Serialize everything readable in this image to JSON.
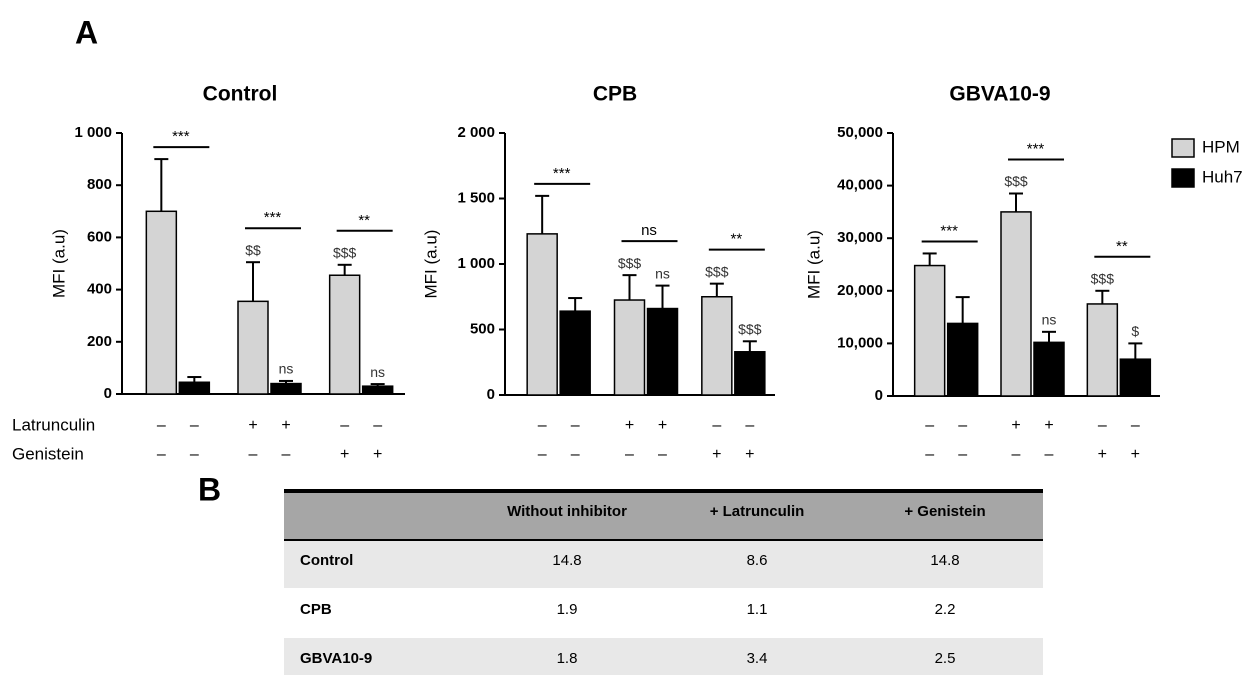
{
  "panel_labels": [
    "A",
    "B"
  ],
  "conditions": [
    "Latrunculin",
    "Genistein"
  ],
  "legend": {
    "position": "right"
  },
  "chart_data": [
    {
      "type": "bar",
      "title": "Control",
      "ylabel": "MFI (a.u)",
      "categories": [
        null,
        null,
        null
      ],
      "series": [
        {
          "name": "HPM",
          "color": "#d4d4d4",
          "values": [
            700,
            355,
            455
          ],
          "errors": [
            200,
            150,
            40
          ],
          "bar_labels": [
            null,
            "$$",
            "$$$"
          ]
        },
        {
          "name": "Huh7",
          "color": "#000000",
          "values": [
            45,
            40,
            30
          ],
          "errors": [
            20,
            10,
            8
          ],
          "bar_labels": [
            null,
            "ns",
            "ns"
          ]
        }
      ],
      "pair_labels": [
        "***",
        "***",
        "**"
      ],
      "condition_marks": [
        [
          "–",
          "–",
          "+",
          "+",
          "–",
          "–"
        ],
        [
          "–",
          "–",
          "–",
          "–",
          "+",
          "+"
        ]
      ],
      "ylim": [
        0,
        1000
      ],
      "yticks": [
        0,
        200,
        400,
        600,
        800,
        {
          "value": 1000,
          "label": "1 000"
        }
      ]
    },
    {
      "type": "bar",
      "title": "CPB",
      "ylabel": "MFI (a.u)",
      "categories": [
        null,
        null,
        null
      ],
      "series": [
        {
          "name": "HPM",
          "color": "#d4d4d4",
          "values": [
            1230,
            725,
            750
          ],
          "errors": [
            290,
            190,
            100
          ],
          "bar_labels": [
            null,
            "$$$",
            "$$$"
          ]
        },
        {
          "name": "Huh7",
          "color": "#000000",
          "values": [
            640,
            660,
            330
          ],
          "errors": [
            100,
            175,
            80
          ],
          "bar_labels": [
            null,
            "ns",
            "$$$"
          ]
        }
      ],
      "pair_labels": [
        "***",
        "ns",
        "**"
      ],
      "condition_marks": [
        [
          "–",
          "–",
          "+",
          "+",
          "–",
          "–"
        ],
        [
          "–",
          "–",
          "–",
          "–",
          "+",
          "+"
        ]
      ],
      "ylim": [
        0,
        2000
      ],
      "yticks": [
        0,
        500,
        {
          "value": 1000,
          "label": "1 000"
        },
        {
          "value": 1500,
          "label": "1 500"
        },
        {
          "value": 2000,
          "label": "2 000"
        }
      ]
    },
    {
      "type": "bar",
      "title": "GBVA10-9",
      "ylabel": "MFI (a.u)",
      "categories": [
        null,
        null,
        null
      ],
      "series": [
        {
          "name": "HPM",
          "color": "#d4d4d4",
          "values": [
            24800,
            35000,
            17500
          ],
          "errors": [
            2300,
            3500,
            2500
          ],
          "bar_labels": [
            null,
            "$$$",
            "$$$"
          ]
        },
        {
          "name": "Huh7",
          "color": "#000000",
          "values": [
            13800,
            10200,
            7000
          ],
          "errors": [
            5000,
            2000,
            3000
          ],
          "bar_labels": [
            null,
            "ns",
            "$"
          ]
        }
      ],
      "pair_labels": [
        "***",
        "***",
        "**"
      ],
      "condition_marks": [
        [
          "–",
          "–",
          "+",
          "+",
          "–",
          "–"
        ],
        [
          "–",
          "–",
          "–",
          "–",
          "+",
          "+"
        ]
      ],
      "ylim": [
        0,
        50000
      ],
      "yticks": [
        0,
        {
          "value": 10000,
          "label": "10,000"
        },
        {
          "value": 20000,
          "label": "20,000"
        },
        {
          "value": 30000,
          "label": "30,000"
        },
        {
          "value": 40000,
          "label": "40,000"
        },
        {
          "value": 50000,
          "label": "50,000"
        }
      ]
    }
  ],
  "table": {
    "columns": [
      "Without inhibitor",
      "+ Latrunculin",
      "+ Genistein"
    ],
    "rows": [
      {
        "label": "Control",
        "cells": [
          14.8,
          8.6,
          14.8
        ]
      },
      {
        "label": "CPB",
        "cells": [
          1.9,
          1.1,
          2.2
        ]
      },
      {
        "label": "GBVA10-9",
        "cells": [
          1.8,
          3.4,
          2.5
        ]
      }
    ]
  }
}
